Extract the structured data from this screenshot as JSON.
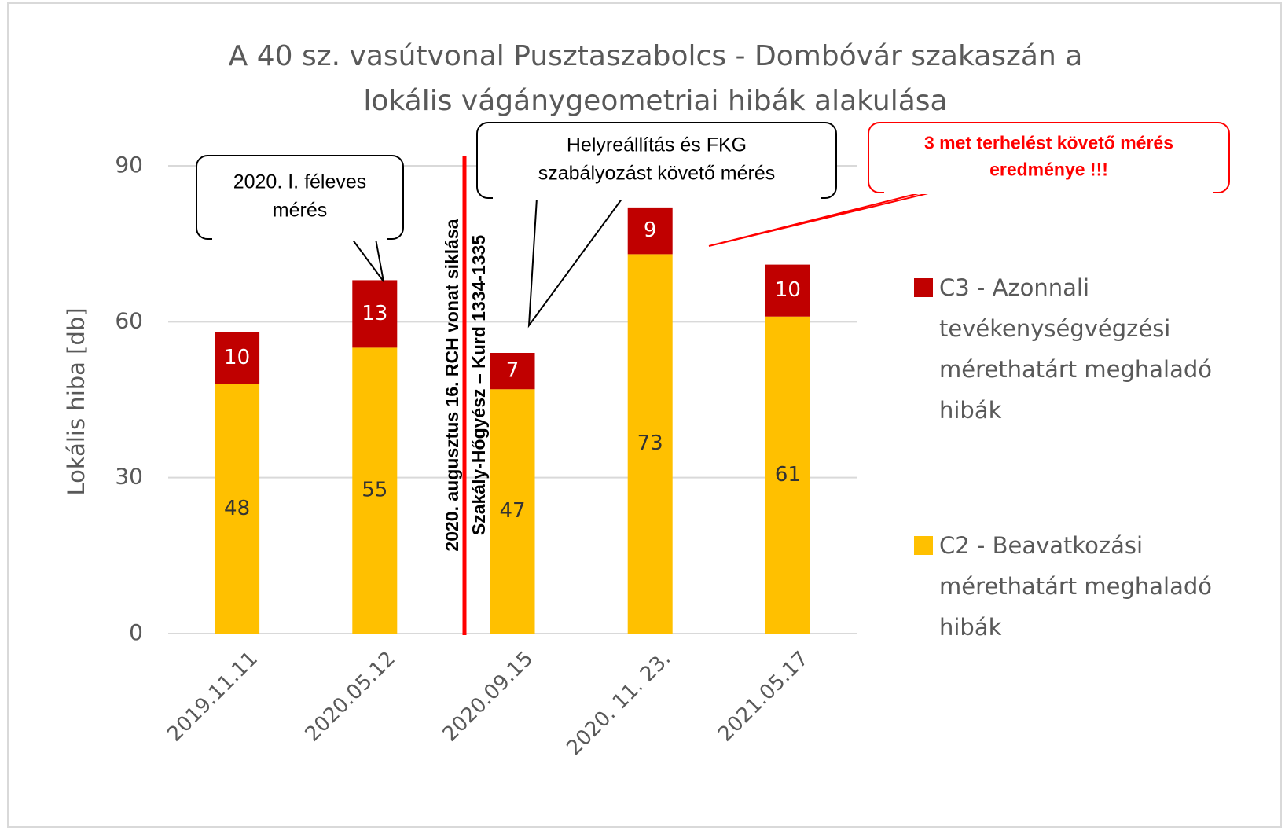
{
  "chart_data": {
    "type": "stacked_bar",
    "title": [
      "A 40 sz. vasútvonal Pusztaszabolcs - Dombóvár szakaszán a",
      "lokális vágánygeometriai hibák alakulása"
    ],
    "y_label": "Lokális hiba [db]",
    "categories": [
      "2019.11.11",
      "2020.05.12",
      "2020.09.15",
      "2020. 11. 23.",
      "2021.05.17"
    ],
    "series": [
      {
        "name": "C2 - Beavatkozási mérethatárt meghaladó hibák",
        "color": "#ffc000",
        "label_color": "#333333",
        "values": [
          48,
          55,
          47,
          73,
          61
        ]
      },
      {
        "name": "C3 -  Azonnali tevékenységvégzési mérethatárt meghaladó hibák",
        "color": "#c00000",
        "label_color": "#ffffff",
        "values": [
          10,
          13,
          7,
          9,
          10
        ]
      }
    ],
    "ylim": [
      0,
      90
    ],
    "yticks": [
      0,
      30,
      60,
      90
    ],
    "grid": true,
    "legend": "right",
    "event_line": {
      "color": "#ff0000",
      "text": [
        "2020. augusztus 16. RCH vonat siklása",
        "Szakály-Hőgyész – Kurd 1334-1335"
      ]
    },
    "annotations": [
      {
        "text": [
          "2020. I. féleves",
          "mérés"
        ],
        "color": "#000000"
      },
      {
        "text": [
          "Helyreállítás és FKG",
          "szabályozást követő mérés"
        ],
        "color": "#000000"
      },
      {
        "text": [
          "3 met terhelést követő mérés",
          "eredménye !!!"
        ],
        "color": "#ff0000"
      }
    ]
  }
}
